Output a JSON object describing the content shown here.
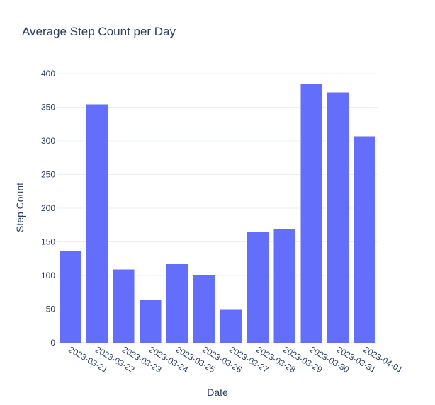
{
  "chart_data": {
    "type": "bar",
    "title": "Average Step Count per Day",
    "xlabel": "Date",
    "ylabel": "Step Count",
    "categories": [
      "2023-03-21",
      "2023-03-22",
      "2023-03-23",
      "2023-03-24",
      "2023-03-25",
      "2023-03-26",
      "2023-03-27",
      "2023-03-28",
      "2023-03-29",
      "2023-03-30",
      "2023-03-31",
      "2023-04-01"
    ],
    "values": [
      137,
      354,
      109,
      64,
      117,
      101,
      49,
      164,
      169,
      384,
      372,
      307
    ],
    "ylim": [
      0,
      400
    ],
    "yticks": [
      0,
      50,
      100,
      150,
      200,
      250,
      300,
      350,
      400
    ],
    "grid": true,
    "bar_color": "#636efa",
    "text_color": "#2a3f5f",
    "grid_color": "#ebf0f8"
  }
}
